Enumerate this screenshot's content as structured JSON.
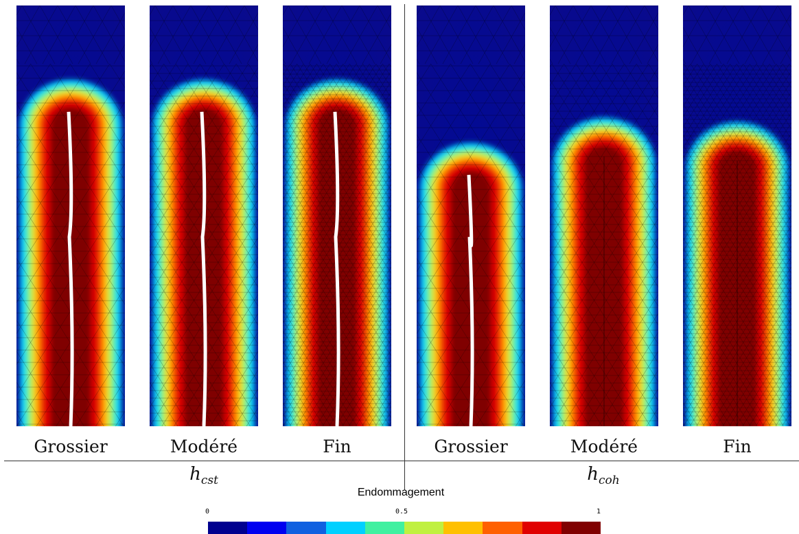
{
  "panels": [
    {
      "label": "Grossier",
      "group": "cst",
      "mesh": "coarse",
      "crack_top_fraction": 0.22,
      "cracked": true
    },
    {
      "label": "Modéré",
      "group": "cst",
      "mesh": "moderate",
      "crack_top_fraction": 0.22,
      "cracked": true
    },
    {
      "label": "Fin",
      "group": "cst",
      "mesh": "fine",
      "crack_top_fraction": 0.22,
      "cracked": true
    },
    {
      "label": "Grossier",
      "group": "coh",
      "mesh": "coarse",
      "crack_top_fraction": 0.37,
      "cracked": true
    },
    {
      "label": "Modéré",
      "group": "coh",
      "mesh": "moderate",
      "crack_top_fraction": 0.31,
      "cracked": false
    },
    {
      "label": "Fin",
      "group": "coh",
      "mesh": "fine",
      "crack_top_fraction": 0.32,
      "cracked": false
    }
  ],
  "groups": [
    {
      "symbol": "h",
      "subscript": "cst"
    },
    {
      "symbol": "h",
      "subscript": "coh"
    }
  ],
  "colorbar": {
    "title": "Endommagement",
    "ticks": [
      "0",
      "0.5",
      "1"
    ],
    "colors": [
      "#00008f",
      "#0000f0",
      "#1060e0",
      "#00d0ff",
      "#40f0a0",
      "#c0f040",
      "#ffc000",
      "#ff6000",
      "#e00000",
      "#800000"
    ]
  },
  "colors": {
    "background_field": "#00008f",
    "damage_max": "#800000"
  }
}
